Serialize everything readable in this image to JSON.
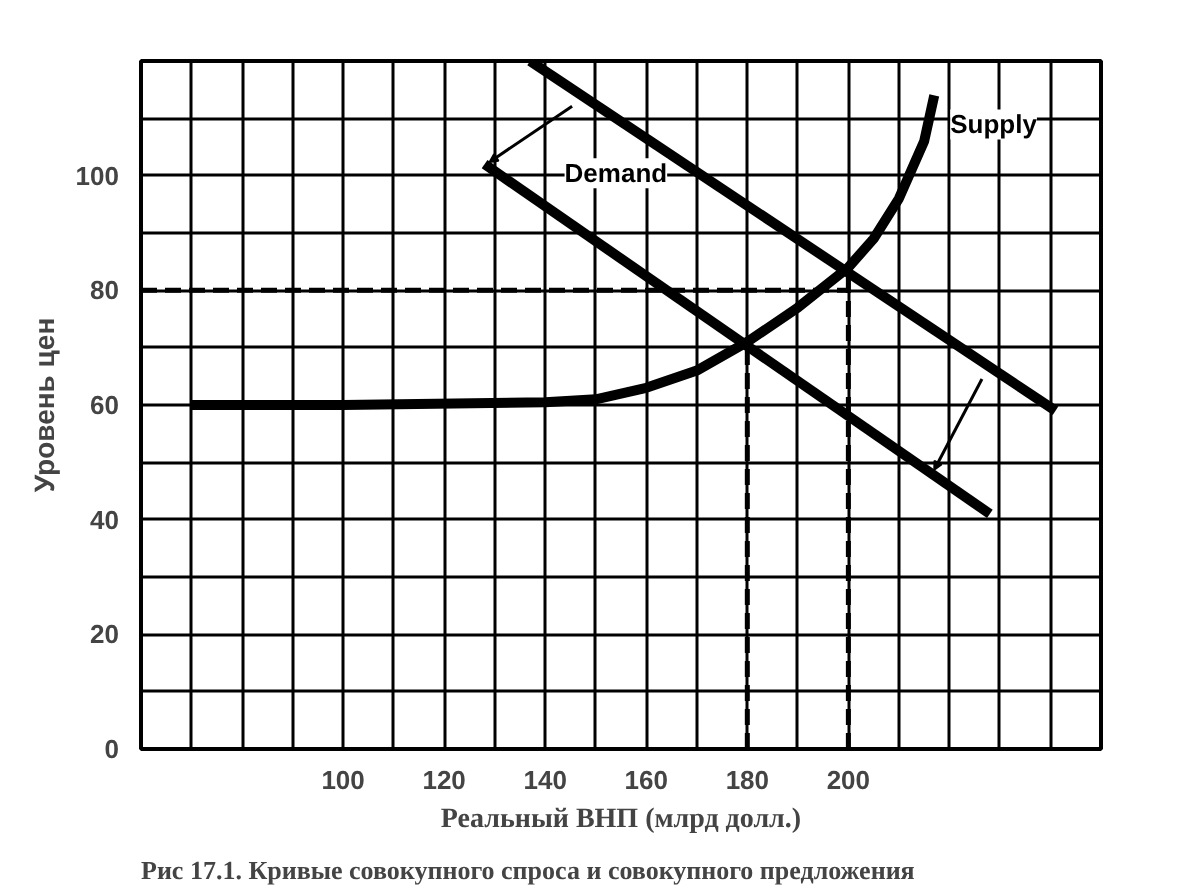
{
  "chart_data": {
    "type": "line",
    "xlabel": "Реальный ВНП (млрд долл.)",
    "ylabel": "Уровень цен",
    "annotations": [
      "Рис 17.1. Кривые совокупного спроса и совокупного предложения"
    ],
    "xlim": [
      60,
      250
    ],
    "ylim": [
      0,
      120
    ],
    "xticks": [
      {
        "value": 70,
        "label": null
      },
      {
        "value": 80,
        "label": null
      },
      {
        "value": 90,
        "label": null
      },
      100,
      {
        "value": 110,
        "label": null
      },
      120,
      {
        "value": 130,
        "label": null
      },
      140,
      {
        "value": 150,
        "label": null
      },
      160,
      {
        "value": 170,
        "label": null
      },
      180,
      {
        "value": 190,
        "label": null
      },
      200,
      {
        "value": 210,
        "label": null
      },
      {
        "value": 220,
        "label": null
      },
      {
        "value": 230,
        "label": null
      },
      {
        "value": 240,
        "label": null
      }
    ],
    "yticks": [
      0,
      {
        "value": 10,
        "label": null
      },
      20,
      {
        "value": 30,
        "label": null
      },
      40,
      {
        "value": 50,
        "label": null
      },
      60,
      {
        "value": 70,
        "label": null
      },
      80,
      {
        "value": 90,
        "label": null
      },
      100,
      {
        "value": 110,
        "label": null
      }
    ],
    "grid": true,
    "marker": "none",
    "series": [
      {
        "name": "Supply",
        "color": "#000000",
        "x": [
          70,
          100,
          140,
          150,
          160,
          170,
          180,
          190,
          200,
          205,
          210,
          215,
          217
        ],
        "values": [
          60,
          60,
          60.5,
          61,
          63,
          66,
          71,
          77,
          84,
          89,
          96,
          106,
          114
        ]
      },
      {
        "name": "Demand",
        "color": "#000000",
        "x": [
          128,
          228
        ],
        "values": [
          102,
          41
        ]
      },
      {
        "color": "#000000",
        "x": [
          137,
          241
        ],
        "values": [
          120,
          59
        ]
      },
      {
        "color": "#000000",
        "x": [
          60,
          200
        ],
        "values": [
          80,
          80
        ],
        "line_style": "dashed"
      },
      {
        "color": "#000000",
        "x": [
          180,
          180
        ],
        "values": [
          0,
          71
        ],
        "line_style": "dashed"
      },
      {
        "color": "#000000",
        "x": [
          200,
          200
        ],
        "values": [
          0,
          84
        ],
        "line_style": "dashed"
      }
    ]
  }
}
